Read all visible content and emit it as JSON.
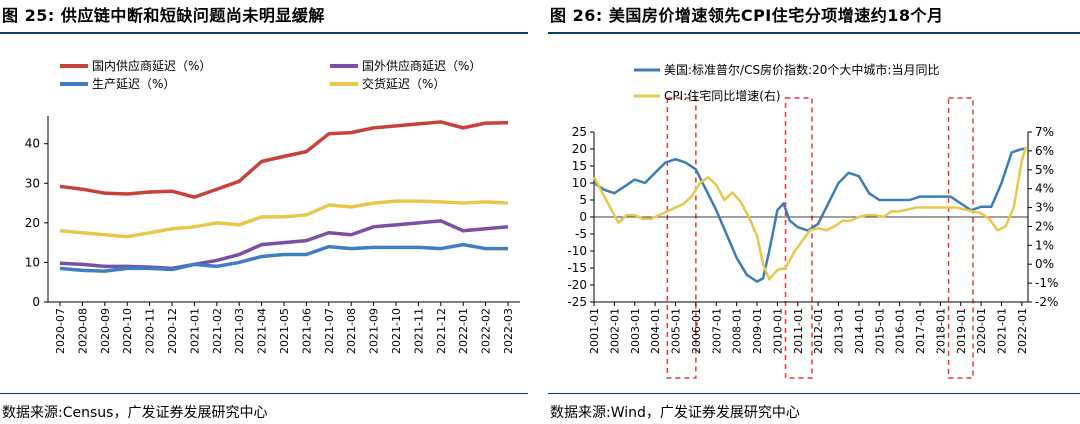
{
  "chart_data": [
    {
      "type": "line",
      "figure_label": "图 25:",
      "title": "供应链中断和短缺问题尚未明显缓解",
      "source": "数据来源:Census，广发证券发展研究中心",
      "categories": [
        "2020-07",
        "2020-08",
        "2020-09",
        "2020-10",
        "2020-11",
        "2020-12",
        "2021-01",
        "2021-02",
        "2021-03",
        "2021-04",
        "2021-05",
        "2021-06",
        "2021-07",
        "2021-08",
        "2021-09",
        "2021-10",
        "2021-11",
        "2021-12",
        "2022-01",
        "2022-02",
        "2022-03"
      ],
      "ylim": [
        0,
        47
      ],
      "yticks": [
        0,
        10,
        20,
        30,
        40
      ],
      "legend_position": "top",
      "series": [
        {
          "name": "国内供应商延迟（%）",
          "color": "#c8413b",
          "values": [
            29.2,
            28.5,
            27.5,
            27.3,
            27.8,
            28,
            26.5,
            28.5,
            30.5,
            35.5,
            36.8,
            38,
            42.5,
            42.8,
            44,
            44.5,
            45,
            45.5,
            44,
            45.2,
            45.3
          ]
        },
        {
          "name": "国外供应商延迟（%）",
          "color": "#7b4fa6",
          "values": [
            9.8,
            9.5,
            9,
            9,
            8.8,
            8.5,
            9.5,
            10.5,
            12,
            14.5,
            15,
            15.5,
            17.5,
            17,
            19,
            19.5,
            20,
            20.5,
            18,
            18.5,
            19
          ]
        },
        {
          "name": "生产延迟（%）",
          "color": "#3f7ebf",
          "values": [
            8.5,
            8,
            7.8,
            8.5,
            8.5,
            8.2,
            9.5,
            9,
            10,
            11.5,
            12,
            12,
            14,
            13.5,
            13.8,
            13.8,
            13.8,
            13.5,
            14.5,
            13.5,
            13.5
          ]
        },
        {
          "name": "交货延迟（%）",
          "color": "#e8c84a",
          "values": [
            18,
            17.5,
            17,
            16.5,
            17.5,
            18.5,
            19,
            20,
            19.5,
            21.5,
            21.5,
            22,
            24.5,
            24,
            25,
            25.5,
            25.5,
            25.3,
            25,
            25.3,
            25
          ]
        }
      ]
    },
    {
      "type": "line",
      "figure_label": "图 26:",
      "title": "美国房价增速领先CPI住宅分项增速约18个月",
      "source": "数据来源:Wind，广发证券发展研究中心",
      "x_range": [
        2001.0,
        2022.3
      ],
      "xticks": [
        "2001-01",
        "2002-01",
        "2003-01",
        "2004-01",
        "2005-01",
        "2006-01",
        "2007-01",
        "2008-01",
        "2009-01",
        "2010-01",
        "2011-01",
        "2012-01",
        "2013-01",
        "2014-01",
        "2015-01",
        "2016-01",
        "2017-01",
        "2018-01",
        "2019-01",
        "2020-01",
        "2021-01",
        "2022-01"
      ],
      "ylim_left": [
        -25,
        25
      ],
      "yticks_left": [
        -25,
        -20,
        -15,
        -10,
        -5,
        0,
        5,
        10,
        15,
        20,
        25
      ],
      "ylim_right": [
        -2,
        7
      ],
      "yticks_right": [
        "-2%",
        "-1%",
        "0%",
        "1%",
        "2%",
        "3%",
        "4%",
        "5%",
        "6%",
        "7%"
      ],
      "dashed_boxes_years": [
        [
          2004.6,
          2006.0
        ],
        [
          2010.4,
          2011.7
        ],
        [
          2018.4,
          2019.6
        ]
      ],
      "series": [
        {
          "name": "美国:标准普尔/CS房价指数:20个大中城市:当月同比",
          "axis": "left",
          "color": "#3c7db5",
          "x": [
            2001,
            2001.5,
            2002,
            2002.5,
            2003,
            2003.5,
            2004,
            2004.5,
            2005,
            2005.5,
            2006,
            2006.5,
            2007,
            2007.5,
            2008,
            2008.5,
            2009,
            2009.3,
            2009.6,
            2010,
            2010.3,
            2010.6,
            2011,
            2011.5,
            2012,
            2012.5,
            2013,
            2013.5,
            2014,
            2014.5,
            2015,
            2015.5,
            2016,
            2016.5,
            2017,
            2017.5,
            2018,
            2018.5,
            2019,
            2019.5,
            2020,
            2020.5,
            2021,
            2021.5,
            2022,
            2022.2
          ],
          "y": [
            10,
            8,
            7,
            9,
            11,
            10,
            13,
            16,
            17,
            16,
            14,
            8,
            2,
            -5,
            -12,
            -17,
            -19,
            -18,
            -10,
            2,
            4,
            -1,
            -3,
            -4,
            -2,
            4,
            10,
            13,
            12,
            7,
            5,
            5,
            5,
            5,
            6,
            6,
            6,
            6,
            4,
            2,
            3,
            3,
            10,
            19,
            20,
            20
          ]
        },
        {
          "name": "CPI:住宅同比增速(右)",
          "axis": "right",
          "color": "#e8c84a",
          "x": [
            2001,
            2001.4,
            2001.8,
            2002.2,
            2002.6,
            2003,
            2003.4,
            2003.8,
            2004.2,
            2004.6,
            2005,
            2005.4,
            2005.8,
            2006.2,
            2006.6,
            2007,
            2007.4,
            2007.8,
            2008.2,
            2008.6,
            2009,
            2009.3,
            2009.6,
            2010,
            2010.4,
            2010.8,
            2011.2,
            2011.6,
            2012,
            2012.4,
            2012.8,
            2013.2,
            2013.6,
            2014,
            2014.4,
            2014.8,
            2015.2,
            2015.6,
            2016,
            2016.4,
            2016.8,
            2017.2,
            2017.6,
            2018,
            2018.4,
            2018.8,
            2019.2,
            2019.6,
            2020,
            2020.4,
            2020.8,
            2021.2,
            2021.6,
            2022,
            2022.2
          ],
          "y": [
            4.6,
            3.8,
            3,
            2.2,
            2.6,
            2.6,
            2.4,
            2.4,
            2.6,
            2.8,
            3,
            3.2,
            3.6,
            4.3,
            4.6,
            4.2,
            3.4,
            3.8,
            3.3,
            2.5,
            1.5,
            0,
            -0.8,
            -0.3,
            -0.2,
            0.6,
            1.2,
            1.8,
            1.9,
            1.8,
            2,
            2.3,
            2.3,
            2.5,
            2.6,
            2.6,
            2.5,
            2.8,
            2.8,
            2.9,
            3,
            3,
            3,
            3,
            3,
            3,
            2.9,
            2.8,
            2.7,
            2.4,
            1.8,
            2,
            3,
            5.5,
            6.2
          ]
        }
      ]
    }
  ]
}
